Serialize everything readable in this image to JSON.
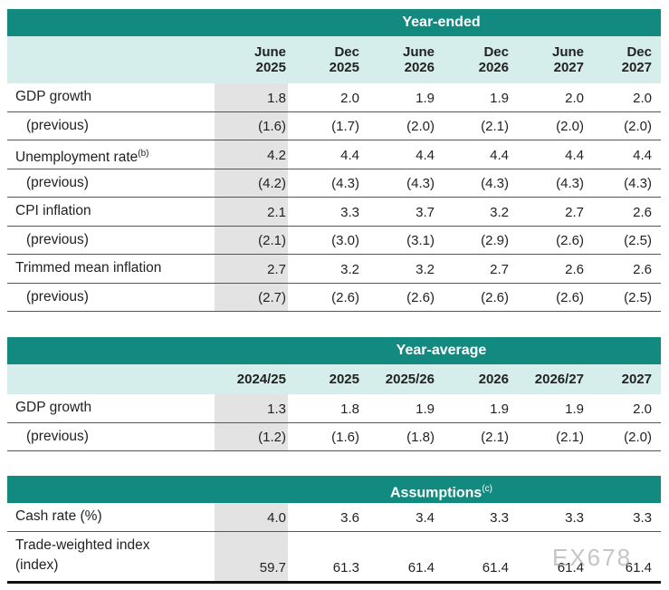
{
  "year_ended": {
    "title": "Year-ended",
    "columns": [
      [
        "June",
        "2025"
      ],
      [
        "Dec",
        "2025"
      ],
      [
        "June",
        "2026"
      ],
      [
        "Dec",
        "2026"
      ],
      [
        "June",
        "2027"
      ],
      [
        "Dec",
        "2027"
      ]
    ],
    "rows": [
      {
        "label": "GDP growth",
        "values": [
          "1.8",
          "2.0",
          "1.9",
          "1.9",
          "2.0",
          "2.0"
        ]
      },
      {
        "label": "(previous)",
        "values": [
          "(1.6)",
          "(1.7)",
          "(2.0)",
          "(2.1)",
          "(2.0)",
          "(2.0)"
        ]
      },
      {
        "label": "Unemployment rate",
        "note": "(b)",
        "values": [
          "4.2",
          "4.4",
          "4.4",
          "4.4",
          "4.4",
          "4.4"
        ]
      },
      {
        "label": "(previous)",
        "values": [
          "(4.2)",
          "(4.3)",
          "(4.3)",
          "(4.3)",
          "(4.3)",
          "(4.3)"
        ]
      },
      {
        "label": "CPI inflation",
        "values": [
          "2.1",
          "3.3",
          "3.7",
          "3.2",
          "2.7",
          "2.6"
        ]
      },
      {
        "label": "(previous)",
        "values": [
          "(2.1)",
          "(3.0)",
          "(3.1)",
          "(2.9)",
          "(2.6)",
          "(2.5)"
        ]
      },
      {
        "label": "Trimmed mean inflation",
        "values": [
          "2.7",
          "3.2",
          "3.2",
          "2.7",
          "2.6",
          "2.6"
        ]
      },
      {
        "label": "(previous)",
        "values": [
          "(2.7)",
          "(2.6)",
          "(2.6)",
          "(2.6)",
          "(2.6)",
          "(2.5)"
        ]
      }
    ]
  },
  "year_average": {
    "title": "Year-average",
    "columns": [
      [
        "2024/25"
      ],
      [
        "2025"
      ],
      [
        "2025/26"
      ],
      [
        "2026"
      ],
      [
        "2026/27"
      ],
      [
        "2027"
      ]
    ],
    "rows": [
      {
        "label": "GDP growth",
        "values": [
          "1.3",
          "1.8",
          "1.9",
          "1.9",
          "1.9",
          "2.0"
        ]
      },
      {
        "label": "(previous)",
        "values": [
          "(1.2)",
          "(1.6)",
          "(1.8)",
          "(2.1)",
          "(2.1)",
          "(2.0)"
        ]
      }
    ]
  },
  "assumptions": {
    "title": "Assumptions",
    "note": "(c)",
    "rows": [
      {
        "label": [
          "Cash rate (%)"
        ],
        "values": [
          "4.0",
          "3.6",
          "3.4",
          "3.3",
          "3.3",
          "3.3"
        ]
      },
      {
        "label": [
          "Trade-weighted index",
          "(index)"
        ],
        "values": [
          "59.7",
          "61.3",
          "61.4",
          "61.4",
          "61.4",
          "61.4"
        ]
      }
    ]
  },
  "watermark": "EX678"
}
